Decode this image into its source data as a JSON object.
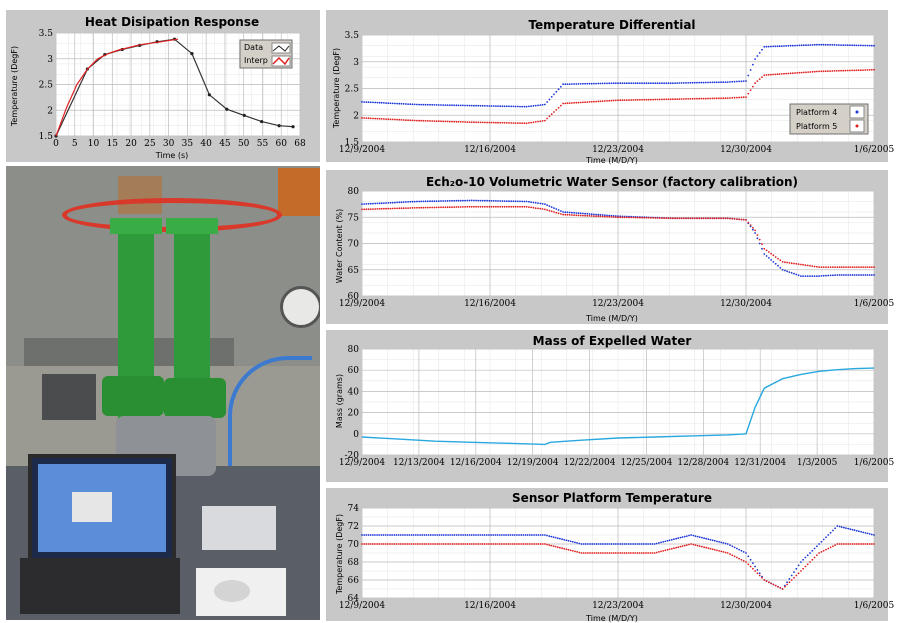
{
  "chart_data": [
    {
      "type": "line",
      "title": "Heat Disipation Response",
      "xlabel": "Time (s)",
      "ylabel": "Temperature (DegF)",
      "xlim": [
        0,
        70
      ],
      "ylim": [
        1.5,
        3.5
      ],
      "x_tick_labels": [
        "0",
        "5",
        "10",
        "15",
        "20",
        "25",
        "30",
        "35",
        "40",
        "45",
        "50",
        "55",
        "60",
        "68"
      ],
      "y_tick_labels": [
        "1.5",
        "2",
        "2.5",
        "3",
        "3.5"
      ],
      "legend": [
        "Data",
        "Interp"
      ],
      "series": [
        {
          "name": "Data",
          "x": [
            0,
            9,
            14,
            19,
            24,
            29,
            34,
            39,
            44,
            49,
            54,
            59,
            64,
            68
          ],
          "y": [
            1.5,
            2.8,
            3.08,
            3.18,
            3.26,
            3.33,
            3.38,
            3.1,
            2.3,
            2.02,
            1.9,
            1.78,
            1.7,
            1.68
          ]
        },
        {
          "name": "Interp",
          "x": [
            0,
            3,
            6,
            9,
            12,
            15,
            18,
            21,
            24,
            27,
            30,
            33,
            35
          ],
          "y": [
            1.5,
            2.05,
            2.5,
            2.8,
            3.0,
            3.1,
            3.17,
            3.22,
            3.27,
            3.3,
            3.33,
            3.36,
            3.38
          ]
        }
      ]
    },
    {
      "type": "scatter",
      "title": "Temperature Differential",
      "xlabel": "Time (M/D/Y)",
      "ylabel": "Temperature (DegF)",
      "xlim": [
        0,
        28
      ],
      "ylim": [
        1.5,
        3.5
      ],
      "x_tick_labels": [
        "12/9/2004",
        "12/16/2004",
        "12/23/2004",
        "12/30/2004",
        "1/6/2005"
      ],
      "y_tick_labels": [
        "1.5",
        "2",
        "2.5",
        "3",
        "3.5"
      ],
      "legend": [
        "Platform 4",
        "Platform 5"
      ],
      "series": [
        {
          "name": "Platform 4",
          "x": [
            0,
            3,
            6,
            9,
            10,
            11,
            14,
            17,
            20,
            21,
            21.5,
            22,
            25,
            28
          ],
          "y": [
            2.25,
            2.2,
            2.18,
            2.16,
            2.2,
            2.58,
            2.6,
            2.6,
            2.62,
            2.64,
            3.05,
            3.28,
            3.32,
            3.3
          ]
        },
        {
          "name": "Platform 5",
          "x": [
            0,
            3,
            6,
            9,
            10,
            11,
            14,
            17,
            20,
            21,
            21.5,
            22,
            25,
            28
          ],
          "y": [
            1.95,
            1.9,
            1.87,
            1.85,
            1.9,
            2.22,
            2.28,
            2.3,
            2.32,
            2.34,
            2.6,
            2.75,
            2.82,
            2.85
          ]
        }
      ]
    },
    {
      "type": "scatter",
      "title": "Ech₂o-10 Volumetric Water Sensor (factory calibration)",
      "xlabel": "Time (M/D/Y)",
      "ylabel": "Water Content (%)",
      "xlim": [
        0,
        28
      ],
      "ylim": [
        60,
        80
      ],
      "x_tick_labels": [
        "12/9/2004",
        "12/16/2004",
        "12/23/2004",
        "12/30/2004",
        "1/6/2005"
      ],
      "y_tick_labels": [
        "60",
        "65",
        "70",
        "75",
        "80"
      ],
      "series": [
        {
          "name": "",
          "x": [
            0,
            3,
            6,
            9,
            10,
            11,
            14,
            17,
            20,
            21,
            21.5,
            22,
            23,
            24,
            25,
            26,
            28
          ],
          "y": [
            77.5,
            78,
            78.2,
            78,
            77.5,
            76,
            75.2,
            74.8,
            74.8,
            74.5,
            72,
            68,
            65,
            63.8,
            63.8,
            64,
            64
          ]
        },
        {
          "name": "",
          "x": [
            0,
            3,
            6,
            9,
            10,
            11,
            14,
            17,
            20,
            21,
            21.5,
            22,
            23,
            24,
            25,
            26,
            28
          ],
          "y": [
            76.5,
            76.8,
            77,
            77,
            76.5,
            75.5,
            75,
            74.8,
            74.8,
            74.5,
            72.5,
            69,
            66.5,
            66,
            65.5,
            65.5,
            65.5
          ]
        }
      ]
    },
    {
      "type": "line",
      "title": "Mass of Expelled Water",
      "xlabel": "",
      "ylabel": "Mass (grams)",
      "xlim": [
        0,
        28
      ],
      "ylim": [
        -20,
        80
      ],
      "x_tick_labels": [
        "12/9/2004",
        "12/13/2004",
        "12/16/2004",
        "12/19/2004",
        "12/22/2004",
        "12/25/2004",
        "12/28/2004",
        "12/31/2004",
        "1/3/2005",
        "1/6/2005"
      ],
      "y_tick_labels": [
        "-20",
        "0",
        "20",
        "40",
        "60",
        "80"
      ],
      "series": [
        {
          "name": "",
          "x": [
            0,
            2,
            4,
            6,
            8,
            10,
            10.3,
            12,
            14,
            16,
            18,
            20,
            21,
            21.5,
            22,
            23,
            24,
            25,
            26,
            27,
            28
          ],
          "y": [
            -3,
            -5,
            -7,
            -8,
            -9,
            -10,
            -8,
            -6,
            -4,
            -3,
            -2,
            -1,
            0,
            25,
            43,
            52,
            56,
            59,
            60.5,
            61.5,
            62
          ]
        }
      ]
    },
    {
      "type": "scatter",
      "title": "Sensor Platform Temperature",
      "xlabel": "Time (M/D/Y)",
      "ylabel": "Temperature (DegF)",
      "xlim": [
        0,
        28
      ],
      "ylim": [
        64,
        74
      ],
      "x_tick_labels": [
        "12/9/2004",
        "12/16/2004",
        "12/23/2004",
        "12/30/2004",
        "1/6/2005"
      ],
      "y_tick_labels": [
        "64",
        "66",
        "68",
        "70",
        "72",
        "74"
      ],
      "series": [
        {
          "name": "",
          "x": [
            0,
            2,
            4,
            6,
            8,
            10,
            12,
            14,
            16,
            18,
            20,
            21,
            22,
            23,
            24,
            25,
            26,
            28
          ],
          "y": [
            71,
            71,
            71,
            71,
            71,
            71,
            70,
            70,
            70,
            71,
            70,
            69,
            66,
            65,
            68,
            70,
            72,
            71
          ]
        },
        {
          "name": "",
          "x": [
            0,
            2,
            4,
            6,
            8,
            10,
            12,
            14,
            16,
            18,
            20,
            21,
            22,
            23,
            24,
            25,
            26,
            28
          ],
          "y": [
            70,
            70,
            70,
            70,
            70,
            70,
            69,
            69,
            69,
            70,
            69,
            68,
            66,
            65,
            67,
            69,
            70,
            70
          ]
        }
      ]
    }
  ]
}
